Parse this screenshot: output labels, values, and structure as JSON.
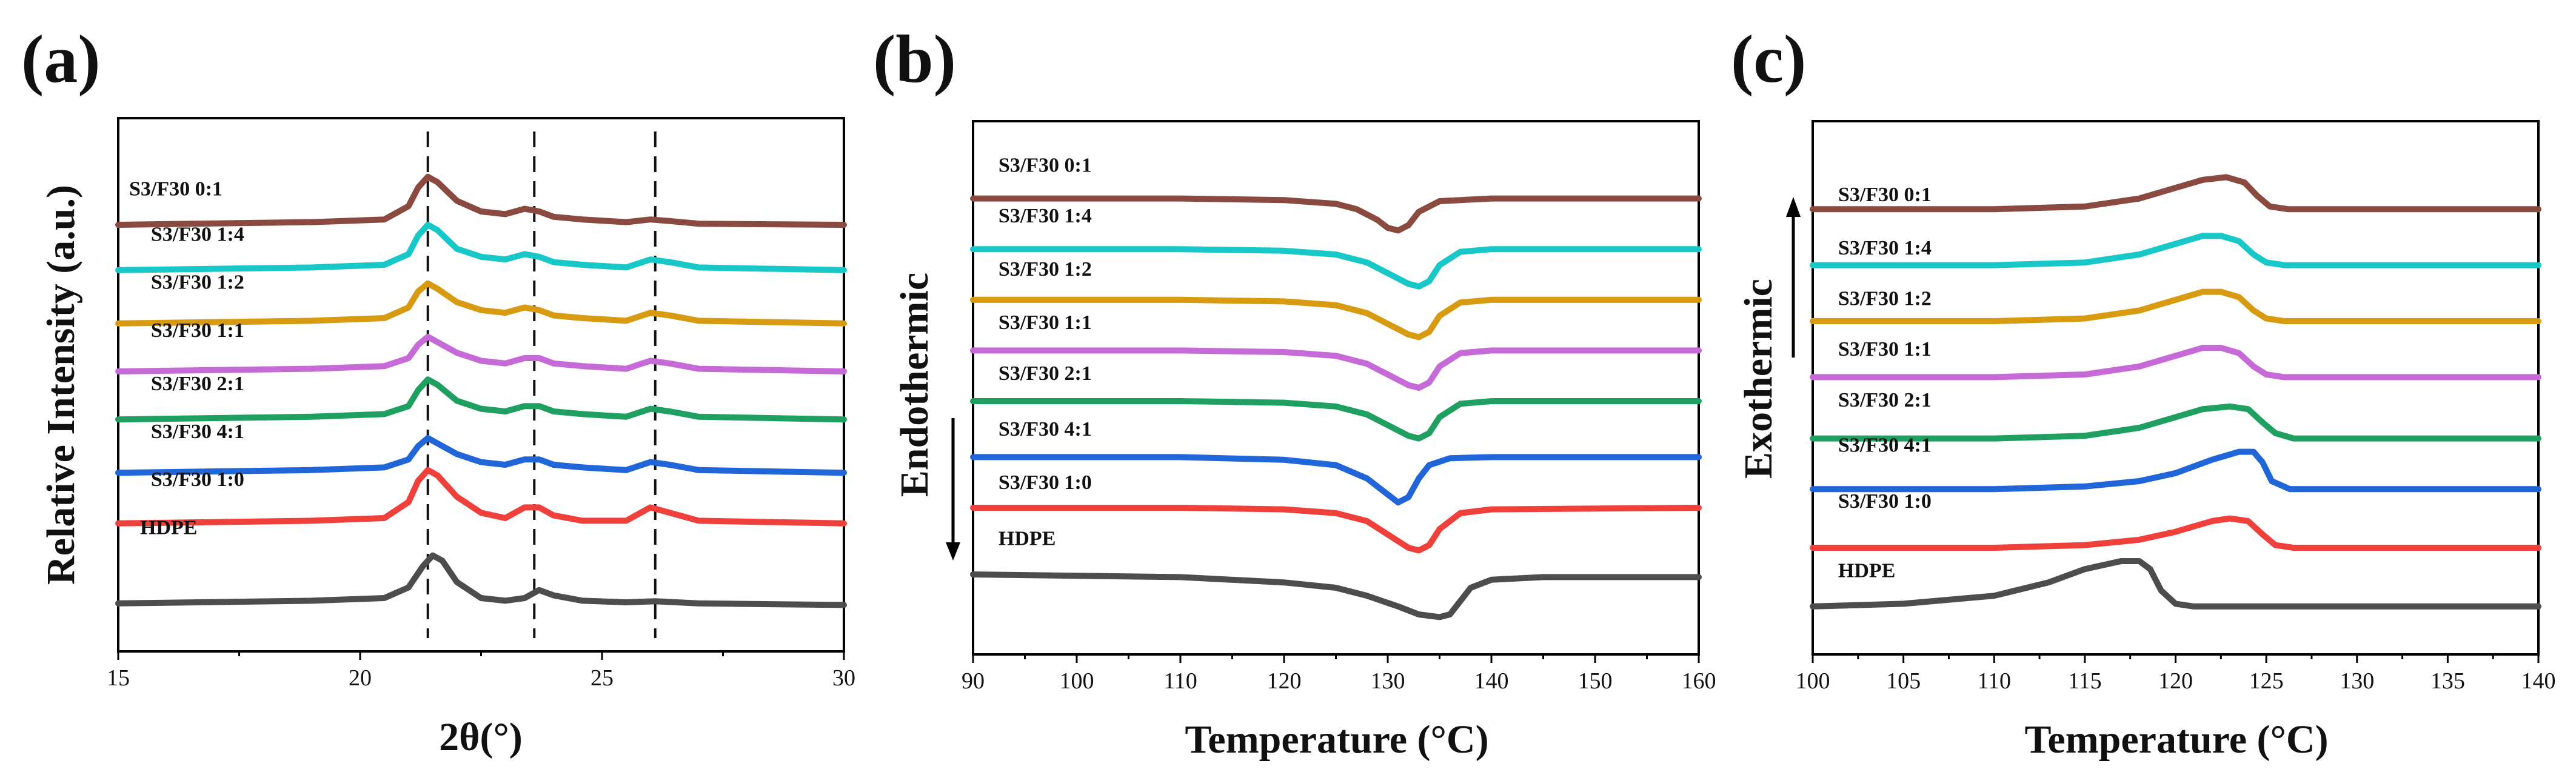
{
  "chart_data": [
    {
      "panel": "(a)",
      "type": "line",
      "xlabel": "2θ(°)",
      "ylabel": "Relative Intensity (a.u.)",
      "xlim": [
        15,
        30
      ],
      "x_ticks": [
        15,
        20,
        25,
        30
      ],
      "show_y_ticks": false,
      "reference_lines_x": [
        21.4,
        23.6,
        26.1
      ],
      "series": [
        {
          "name": "HDPE",
          "color": "#4d4d4d",
          "label_pos": [
            0.02,
            0.22
          ],
          "base": 0.09,
          "x": [
            15,
            19,
            20.5,
            21.0,
            21.3,
            21.5,
            21.7,
            22.0,
            22.5,
            23.0,
            23.4,
            23.7,
            24.0,
            24.6,
            25.5,
            26.1,
            27,
            30
          ],
          "y": [
            0.09,
            0.095,
            0.1,
            0.12,
            0.16,
            0.18,
            0.17,
            0.13,
            0.1,
            0.095,
            0.1,
            0.115,
            0.105,
            0.095,
            0.092,
            0.094,
            0.09,
            0.087
          ]
        },
        {
          "name": "S3/F30 1:0",
          "color": "#f0403c",
          "label_pos": [
            0.035,
            0.31
          ],
          "base": 0.24,
          "x": [
            15,
            19,
            20.5,
            21.0,
            21.2,
            21.4,
            21.6,
            22.0,
            22.5,
            23.0,
            23.4,
            23.7,
            24.0,
            24.6,
            25.5,
            26.0,
            26.4,
            27,
            30
          ],
          "y": [
            0.24,
            0.245,
            0.25,
            0.28,
            0.32,
            0.34,
            0.33,
            0.29,
            0.26,
            0.25,
            0.27,
            0.27,
            0.255,
            0.245,
            0.245,
            0.27,
            0.26,
            0.245,
            0.24
          ]
        },
        {
          "name": "S3/F30 4:1",
          "color": "#2166d8",
          "label_pos": [
            0.035,
            0.4
          ],
          "base": 0.34,
          "x": [
            15,
            19,
            20.5,
            21.0,
            21.2,
            21.4,
            21.6,
            22.0,
            22.5,
            23.0,
            23.4,
            23.7,
            24.0,
            24.6,
            25.5,
            26.0,
            26.4,
            27,
            30
          ],
          "y": [
            0.335,
            0.34,
            0.345,
            0.36,
            0.385,
            0.4,
            0.39,
            0.37,
            0.355,
            0.35,
            0.36,
            0.36,
            0.35,
            0.345,
            0.34,
            0.355,
            0.35,
            0.34,
            0.335
          ]
        },
        {
          "name": "S3/F30 2:1",
          "color": "#20a060",
          "label_pos": [
            0.035,
            0.49
          ],
          "base": 0.44,
          "x": [
            15,
            19,
            20.5,
            21.0,
            21.2,
            21.4,
            21.6,
            22.0,
            22.5,
            23.0,
            23.4,
            23.7,
            24.0,
            24.6,
            25.5,
            26.0,
            26.4,
            27,
            30
          ],
          "y": [
            0.435,
            0.44,
            0.445,
            0.46,
            0.49,
            0.51,
            0.5,
            0.47,
            0.455,
            0.45,
            0.46,
            0.46,
            0.45,
            0.445,
            0.44,
            0.455,
            0.45,
            0.44,
            0.435
          ]
        },
        {
          "name": "S3/F30 1:1",
          "color": "#c56ad6",
          "label_pos": [
            0.035,
            0.59
          ],
          "base": 0.53,
          "x": [
            15,
            19,
            20.5,
            21.0,
            21.2,
            21.4,
            21.6,
            22.0,
            22.5,
            23.0,
            23.4,
            23.7,
            24.0,
            24.6,
            25.5,
            26.0,
            26.4,
            27,
            30
          ],
          "y": [
            0.525,
            0.53,
            0.535,
            0.55,
            0.575,
            0.59,
            0.58,
            0.56,
            0.545,
            0.54,
            0.55,
            0.55,
            0.54,
            0.535,
            0.53,
            0.545,
            0.54,
            0.53,
            0.525
          ]
        },
        {
          "name": "S3/F30 1:2",
          "color": "#d89a10",
          "label_pos": [
            0.035,
            0.68
          ],
          "base": 0.62,
          "x": [
            15,
            19,
            20.5,
            21.0,
            21.2,
            21.4,
            21.6,
            22.0,
            22.5,
            23.0,
            23.4,
            23.7,
            24.0,
            24.6,
            25.5,
            26.0,
            26.4,
            27,
            30
          ],
          "y": [
            0.615,
            0.62,
            0.625,
            0.645,
            0.675,
            0.69,
            0.68,
            0.655,
            0.64,
            0.635,
            0.645,
            0.64,
            0.63,
            0.625,
            0.62,
            0.635,
            0.63,
            0.62,
            0.615
          ]
        },
        {
          "name": "S3/F30 1:4",
          "color": "#18c8c8",
          "label_pos": [
            0.035,
            0.77
          ],
          "base": 0.72,
          "x": [
            15,
            19,
            20.5,
            21.0,
            21.2,
            21.4,
            21.6,
            22.0,
            22.5,
            23.0,
            23.4,
            23.7,
            24.0,
            24.6,
            25.5,
            26.0,
            26.4,
            27,
            30
          ],
          "y": [
            0.715,
            0.72,
            0.725,
            0.745,
            0.78,
            0.8,
            0.79,
            0.755,
            0.74,
            0.735,
            0.745,
            0.74,
            0.73,
            0.725,
            0.72,
            0.735,
            0.73,
            0.72,
            0.715
          ]
        },
        {
          "name": "S3/F30 0:1",
          "color": "#8a4a40",
          "label_pos": [
            0.005,
            0.855
          ],
          "base": 0.8,
          "x": [
            15,
            19,
            20.5,
            21.0,
            21.2,
            21.4,
            21.6,
            22.0,
            22.5,
            23.0,
            23.4,
            23.7,
            24.0,
            24.6,
            25.5,
            26.0,
            26.4,
            27,
            30
          ],
          "y": [
            0.8,
            0.805,
            0.81,
            0.835,
            0.87,
            0.89,
            0.88,
            0.845,
            0.825,
            0.82,
            0.83,
            0.825,
            0.815,
            0.81,
            0.805,
            0.81,
            0.807,
            0.802,
            0.8
          ]
        }
      ]
    },
    {
      "panel": "(b)",
      "type": "line",
      "xlabel": "Temperature (°C)",
      "ylabel": "Endothermic",
      "ylabel_arrow": "down",
      "xlim": [
        90,
        160
      ],
      "x_ticks": [
        90,
        100,
        110,
        120,
        130,
        140,
        150,
        160
      ],
      "show_y_ticks": false,
      "series": [
        {
          "name": "HDPE",
          "color": "#4d4d4d",
          "label_pos": [
            0.025,
            0.205
          ],
          "x": [
            90,
            110,
            120,
            125,
            128,
            131,
            133,
            135,
            136,
            137,
            138,
            140,
            145,
            160
          ],
          "y": [
            0.15,
            0.145,
            0.135,
            0.125,
            0.11,
            0.09,
            0.075,
            0.07,
            0.075,
            0.1,
            0.125,
            0.14,
            0.145,
            0.145
          ]
        },
        {
          "name": "S3/F30 1:0",
          "color": "#f0403c",
          "label_pos": [
            0.025,
            0.31
          ],
          "x": [
            90,
            110,
            120,
            125,
            128,
            130,
            132,
            133,
            134,
            135,
            137,
            140,
            160
          ],
          "y": [
            0.275,
            0.275,
            0.272,
            0.265,
            0.25,
            0.225,
            0.2,
            0.195,
            0.205,
            0.235,
            0.265,
            0.272,
            0.275
          ]
        },
        {
          "name": "S3/F30 4:1",
          "color": "#2166d8",
          "label_pos": [
            0.025,
            0.41
          ],
          "x": [
            90,
            110,
            120,
            125,
            128,
            130,
            131,
            132,
            133,
            134,
            136,
            140,
            160
          ],
          "y": [
            0.37,
            0.37,
            0.365,
            0.355,
            0.33,
            0.3,
            0.285,
            0.295,
            0.33,
            0.355,
            0.368,
            0.37,
            0.37
          ]
        },
        {
          "name": "S3/F30 2:1",
          "color": "#20a060",
          "label_pos": [
            0.025,
            0.515
          ],
          "x": [
            90,
            110,
            120,
            125,
            128,
            130,
            132,
            133,
            134,
            135,
            137,
            140,
            160
          ],
          "y": [
            0.475,
            0.475,
            0.472,
            0.465,
            0.45,
            0.43,
            0.41,
            0.405,
            0.415,
            0.445,
            0.47,
            0.475,
            0.475
          ]
        },
        {
          "name": "S3/F30 1:1",
          "color": "#c56ad6",
          "label_pos": [
            0.025,
            0.61
          ],
          "x": [
            90,
            110,
            120,
            125,
            128,
            130,
            132,
            133,
            134,
            135,
            137,
            140,
            160
          ],
          "y": [
            0.57,
            0.57,
            0.567,
            0.56,
            0.545,
            0.525,
            0.505,
            0.5,
            0.51,
            0.54,
            0.565,
            0.57,
            0.57
          ]
        },
        {
          "name": "S3/F30 1:2",
          "color": "#d89a10",
          "label_pos": [
            0.025,
            0.71
          ],
          "x": [
            90,
            110,
            120,
            125,
            128,
            130,
            132,
            133,
            134,
            135,
            137,
            140,
            160
          ],
          "y": [
            0.665,
            0.665,
            0.662,
            0.655,
            0.64,
            0.62,
            0.6,
            0.595,
            0.605,
            0.635,
            0.66,
            0.665,
            0.665
          ]
        },
        {
          "name": "S3/F30 1:4",
          "color": "#18c8c8",
          "label_pos": [
            0.025,
            0.81
          ],
          "x": [
            90,
            110,
            120,
            125,
            128,
            130,
            132,
            133,
            134,
            135,
            137,
            140,
            160
          ],
          "y": [
            0.76,
            0.76,
            0.757,
            0.75,
            0.735,
            0.715,
            0.695,
            0.69,
            0.7,
            0.73,
            0.755,
            0.76,
            0.76
          ]
        },
        {
          "name": "S3/F30 0:1",
          "color": "#8a4a40",
          "label_pos": [
            0.025,
            0.905
          ],
          "x": [
            90,
            110,
            120,
            125,
            127,
            129,
            130,
            131,
            132,
            133,
            135,
            140,
            160
          ],
          "y": [
            0.855,
            0.855,
            0.852,
            0.845,
            0.835,
            0.815,
            0.8,
            0.795,
            0.805,
            0.83,
            0.85,
            0.855,
            0.855
          ]
        }
      ]
    },
    {
      "panel": "(c)",
      "type": "line",
      "xlabel": "Temperature (°C)",
      "ylabel": "Exothermic",
      "ylabel_arrow": "up",
      "xlim": [
        100,
        140
      ],
      "x_ticks": [
        100,
        105,
        110,
        115,
        120,
        125,
        130,
        135,
        140
      ],
      "show_y_ticks": false,
      "series": [
        {
          "name": "HDPE",
          "color": "#4d4d4d",
          "label_pos": [
            0.025,
            0.145
          ],
          "x": [
            100,
            105,
            110,
            113,
            115,
            117,
            118,
            118.6,
            119.2,
            120,
            121,
            125,
            140
          ],
          "y": [
            0.09,
            0.095,
            0.11,
            0.135,
            0.16,
            0.175,
            0.175,
            0.16,
            0.12,
            0.095,
            0.09,
            0.09,
            0.09
          ]
        },
        {
          "name": "S3/F30 1:0",
          "color": "#f0403c",
          "label_pos": [
            0.025,
            0.275
          ],
          "x": [
            100,
            110,
            115,
            118,
            120,
            122,
            123,
            124,
            124.8,
            125.5,
            126.5,
            130,
            140
          ],
          "y": [
            0.2,
            0.2,
            0.205,
            0.215,
            0.23,
            0.25,
            0.255,
            0.25,
            0.225,
            0.205,
            0.2,
            0.2,
            0.2
          ]
        },
        {
          "name": "S3/F30 4:1",
          "color": "#2166d8",
          "label_pos": [
            0.025,
            0.38
          ],
          "x": [
            100,
            110,
            115,
            118,
            120,
            122,
            123.5,
            124.3,
            124.8,
            125.3,
            126.3,
            130,
            140
          ],
          "y": [
            0.31,
            0.31,
            0.315,
            0.325,
            0.34,
            0.365,
            0.38,
            0.38,
            0.36,
            0.325,
            0.31,
            0.31,
            0.31
          ]
        },
        {
          "name": "S3/F30 2:1",
          "color": "#20a060",
          "label_pos": [
            0.025,
            0.465
          ],
          "x": [
            100,
            110,
            115,
            118,
            120,
            121.5,
            123,
            124,
            124.8,
            125.5,
            126.5,
            130,
            140
          ],
          "y": [
            0.405,
            0.405,
            0.41,
            0.425,
            0.445,
            0.46,
            0.465,
            0.46,
            0.435,
            0.415,
            0.405,
            0.405,
            0.405
          ]
        },
        {
          "name": "S3/F30 1:1",
          "color": "#c56ad6",
          "label_pos": [
            0.025,
            0.56
          ],
          "x": [
            100,
            110,
            115,
            118,
            120,
            121.5,
            122.5,
            123.5,
            124.3,
            125,
            126,
            130,
            140
          ],
          "y": [
            0.52,
            0.52,
            0.525,
            0.54,
            0.56,
            0.575,
            0.575,
            0.565,
            0.54,
            0.525,
            0.52,
            0.52,
            0.52
          ]
        },
        {
          "name": "S3/F30 1:2",
          "color": "#d89a10",
          "label_pos": [
            0.025,
            0.655
          ],
          "x": [
            100,
            110,
            115,
            118,
            120,
            121.5,
            122.5,
            123.5,
            124.3,
            125,
            126,
            130,
            140
          ],
          "y": [
            0.625,
            0.625,
            0.63,
            0.645,
            0.665,
            0.68,
            0.68,
            0.67,
            0.645,
            0.63,
            0.625,
            0.625,
            0.625
          ]
        },
        {
          "name": "S3/F30 1:4",
          "color": "#18c8c8",
          "label_pos": [
            0.025,
            0.75
          ],
          "x": [
            100,
            110,
            115,
            118,
            120,
            121.5,
            122.5,
            123.5,
            124.3,
            125,
            126,
            130,
            140
          ],
          "y": [
            0.73,
            0.73,
            0.735,
            0.75,
            0.77,
            0.785,
            0.785,
            0.775,
            0.75,
            0.735,
            0.73,
            0.73,
            0.73
          ]
        },
        {
          "name": "S3/F30 0:1",
          "color": "#8a4a40",
          "label_pos": [
            0.025,
            0.85
          ],
          "x": [
            100,
            110,
            115,
            118,
            120,
            121.5,
            122.8,
            123.8,
            124.5,
            125.2,
            126.2,
            130,
            140
          ],
          "y": [
            0.835,
            0.835,
            0.84,
            0.855,
            0.875,
            0.89,
            0.895,
            0.885,
            0.86,
            0.84,
            0.835,
            0.835,
            0.835
          ]
        }
      ]
    }
  ]
}
